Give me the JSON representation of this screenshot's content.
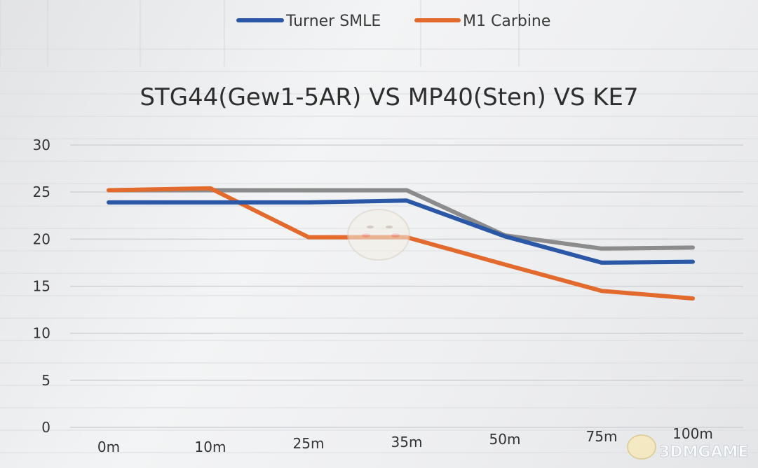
{
  "chart_data": {
    "type": "line",
    "title": "STG44(Gew1-5AR) VS MP40(Sten) VS KE7",
    "xlabel": "",
    "ylabel": "",
    "categories": [
      "0m",
      "10m",
      "25m",
      "35m",
      "50m",
      "75m",
      "100m"
    ],
    "ylim": [
      0,
      30
    ],
    "yticks": [
      "0",
      "5",
      "10",
      "15",
      "20",
      "25",
      "30"
    ],
    "grid": true,
    "legend_position": "top",
    "legend_entries": [
      "Turner SMLE",
      "M1 Carbine"
    ],
    "series": [
      {
        "name": "Turner SMLE",
        "color": "#2b58a6",
        "values": [
          23.9,
          23.9,
          23.9,
          24.1,
          20.3,
          17.5,
          17.6
        ]
      },
      {
        "name": "M1 Carbine",
        "color": "#e26a2c",
        "values": [
          25.2,
          25.4,
          20.2,
          20.2,
          17.3,
          14.5,
          13.7
        ]
      },
      {
        "color": "#8c8c8c",
        "values": [
          25.2,
          25.2,
          25.2,
          25.2,
          20.4,
          19.0,
          19.1
        ]
      }
    ]
  }
}
